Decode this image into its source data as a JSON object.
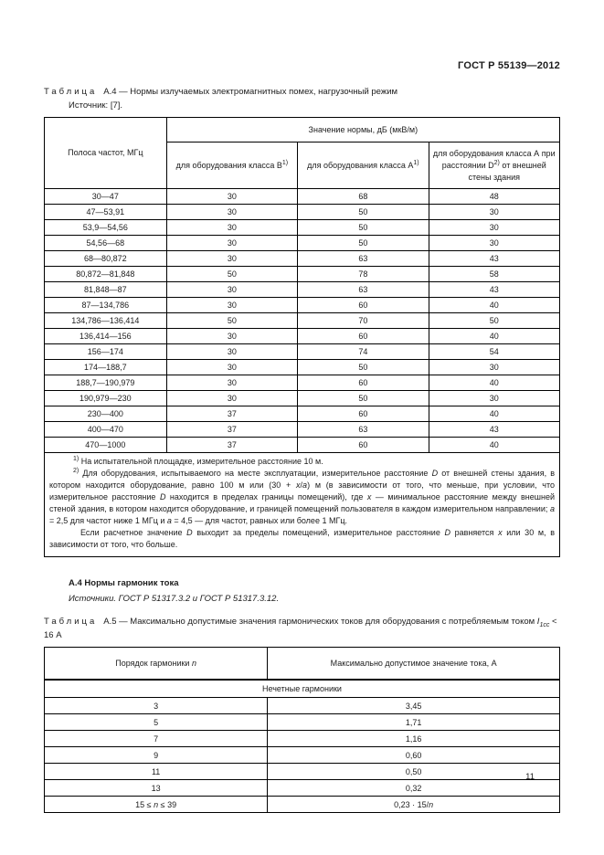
{
  "page": {
    "doc_number": "ГОСТ Р 55139—2012",
    "page_number": "11"
  },
  "table_a4": {
    "caption_word": "Таблица",
    "caption_rest": "А.4 — Нормы излучаемых электромагнитных помех, нагрузочный режим",
    "source": "Источник: [7].",
    "headers": {
      "col_freq": "Полоса частот, МГц",
      "span": "Значение нормы, дБ (мкВ/м)",
      "col_b": [
        {
          "t": "для оборудования класса В"
        },
        {
          "t": "1)",
          "sup": true
        }
      ],
      "col_a": [
        {
          "t": "для оборудования класса А"
        },
        {
          "t": "1)",
          "sup": true
        }
      ],
      "col_a_d": [
        {
          "t": "для оборудования класса А при расстоянии D",
          "i_last": false
        },
        {
          "t": "2)",
          "sup": true
        },
        {
          "t": " от внешней стены здания"
        }
      ]
    },
    "rows": [
      [
        "30—47",
        "30",
        "68",
        "48"
      ],
      [
        "47—53,91",
        "30",
        "50",
        "30"
      ],
      [
        "53,9—54,56",
        "30",
        "50",
        "30"
      ],
      [
        "54,56—68",
        "30",
        "50",
        "30"
      ],
      [
        "68—80,872",
        "30",
        "63",
        "43"
      ],
      [
        "80,872—81,848",
        "50",
        "78",
        "58"
      ],
      [
        "81,848—87",
        "30",
        "63",
        "43"
      ],
      [
        "87—134,786",
        "30",
        "60",
        "40"
      ],
      [
        "134,786—136,414",
        "50",
        "70",
        "50"
      ],
      [
        "136,414—156",
        "30",
        "60",
        "40"
      ],
      [
        "156—174",
        "30",
        "74",
        "54"
      ],
      [
        "174—188,7",
        "30",
        "50",
        "30"
      ],
      [
        "188,7—190,979",
        "30",
        "60",
        "40"
      ],
      [
        "190,979—230",
        "30",
        "50",
        "30"
      ],
      [
        "230—400",
        "37",
        "60",
        "40"
      ],
      [
        "400—470",
        "37",
        "63",
        "43"
      ],
      [
        "470—1000",
        "37",
        "60",
        "40"
      ]
    ],
    "footnotes": {
      "fn1": [
        {
          "t": "1)",
          "sup": true
        },
        {
          "t": " На испытательной площадке, измерительное расстояние 10 м."
        }
      ],
      "fn2": [
        {
          "t": "2)",
          "sup": true
        },
        {
          "t": " Для оборудования, испытываемого на месте эксплуатации, измерительное расстояние "
        },
        {
          "t": "D",
          "i": true
        },
        {
          "t": " от внешней стены здания, в котором находится оборудование, равно 100 м или (30 + "
        },
        {
          "t": "x",
          "i": true
        },
        {
          "t": "/"
        },
        {
          "t": "a",
          "i": true
        },
        {
          "t": ") м (в зависимости от того, что меньше, при условии, что измерительное расстояние "
        },
        {
          "t": "D",
          "i": true
        },
        {
          "t": " находится в пределах границы помещений), где "
        },
        {
          "t": "x",
          "i": true
        },
        {
          "t": " — минимальное расстояние между внешней стеной здания, в котором находится оборудование, и границей помещений пользователя в каждом измерительном направлении; "
        },
        {
          "t": "a",
          "i": true
        },
        {
          "t": " = 2,5 для частот ниже 1 МГц и "
        },
        {
          "t": "a",
          "i": true
        },
        {
          "t": " = 4,5 — для частот, равных или более 1 МГц."
        }
      ],
      "fn2b": [
        {
          "t": "Если расчетное значение "
        },
        {
          "t": "D",
          "i": true
        },
        {
          "t": " выходит за пределы помещений, измерительное расстояние "
        },
        {
          "t": "D",
          "i": true
        },
        {
          "t": " равняется "
        },
        {
          "t": "x",
          "i": true
        },
        {
          "t": " или 30 м, в зависимости от того, что больше."
        }
      ]
    }
  },
  "section_a4": {
    "heading": "А.4  Нормы гармоник тока",
    "sources": "Источники. ГОСТ Р 51317.3.2 и ГОСТ Р 51317.3.12."
  },
  "table_a5": {
    "caption_word": "Таблица",
    "caption_rest": [
      {
        "t": "А.5 — Максимально допустимые значения гармонических токов для оборудования с потребляемым током "
      },
      {
        "t": "I",
        "i": true
      },
      {
        "t": "1cc",
        "sub": true,
        "i": true
      },
      {
        "t": " < 16 А"
      }
    ],
    "headers": {
      "col_n": [
        {
          "t": "Порядок гармоники "
        },
        {
          "t": "n",
          "i": true
        }
      ],
      "col_val": "Максимально допустимое значение тока, А"
    },
    "section_row": "Нечетные гармоники",
    "rows": [
      [
        "3",
        "3,45"
      ],
      [
        "5",
        "1,71"
      ],
      [
        "7",
        "1,16"
      ],
      [
        "9",
        "0,60"
      ],
      [
        "11",
        "0,50"
      ],
      [
        "13",
        "0,32"
      ],
      [
        [
          {
            "t": "15 ≤ "
          },
          {
            "t": "n",
            "i": true
          },
          {
            "t": " ≤ 39"
          }
        ],
        [
          {
            "t": "0,23 · 15/"
          },
          {
            "t": "n",
            "i": true
          }
        ]
      ]
    ]
  }
}
